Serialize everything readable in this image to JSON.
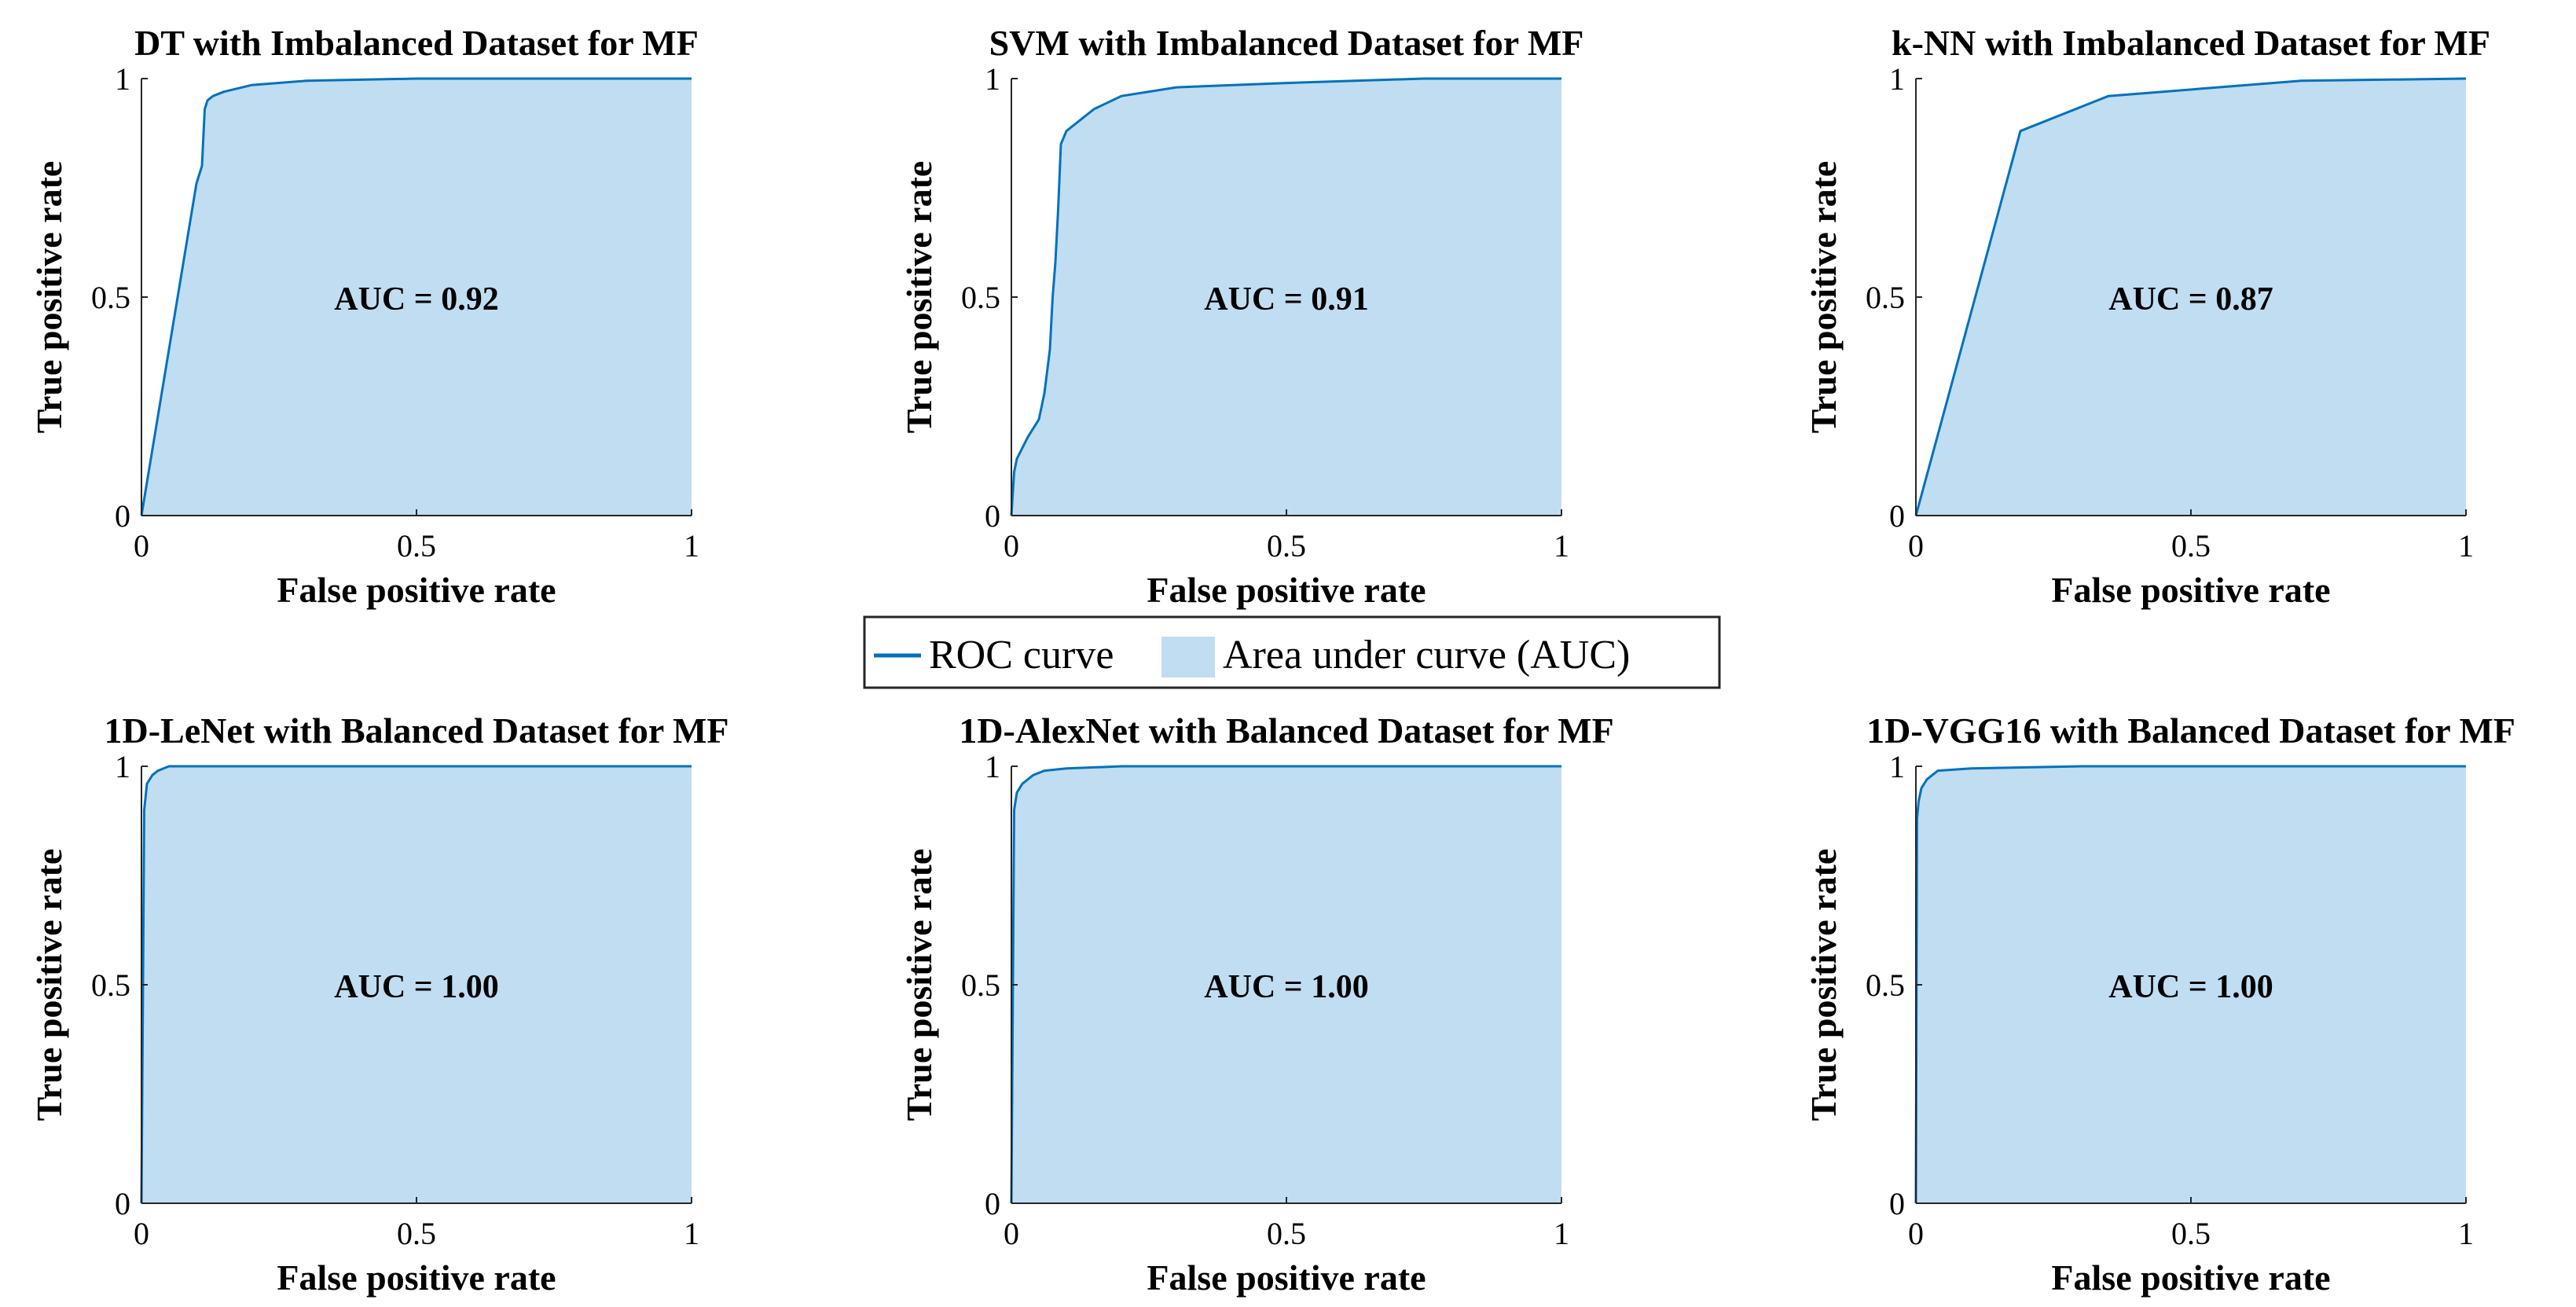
{
  "colors": {
    "line": "#0072BD",
    "fill": "#C1DDF2",
    "axis": "#262626",
    "legend_border": "#262626"
  },
  "legend": {
    "line_label": "ROC curve",
    "area_label": "Area under curve (AUC)"
  },
  "chart_data": [
    {
      "type": "area",
      "title": "DT with Imbalanced Dataset for MF",
      "xlabel": "False positive rate",
      "ylabel": "True positive rate",
      "xlim": [
        0,
        1
      ],
      "ylim": [
        0,
        1
      ],
      "xticks": [
        "0",
        "0.5",
        "1"
      ],
      "yticks": [
        "0",
        "0.5",
        "1"
      ],
      "auc_text": "AUC = 0.92",
      "series": [
        {
          "name": "ROC curve",
          "x": [
            0,
            0.1,
            0.11,
            0.115,
            0.12,
            0.13,
            0.15,
            0.2,
            0.3,
            0.5,
            1
          ],
          "y": [
            0,
            0.76,
            0.8,
            0.93,
            0.95,
            0.96,
            0.97,
            0.985,
            0.995,
            1,
            1
          ]
        }
      ]
    },
    {
      "type": "area",
      "title": "SVM with Imbalanced Dataset for MF",
      "xlabel": "False positive rate",
      "ylabel": "True positive rate",
      "xlim": [
        0,
        1
      ],
      "ylim": [
        0,
        1
      ],
      "xticks": [
        "0",
        "0.5",
        "1"
      ],
      "yticks": [
        "0",
        "0.5",
        "1"
      ],
      "auc_text": "AUC = 0.91",
      "series": [
        {
          "name": "ROC curve",
          "x": [
            0,
            0.005,
            0.01,
            0.03,
            0.05,
            0.06,
            0.07,
            0.075,
            0.08,
            0.085,
            0.09,
            0.1,
            0.12,
            0.15,
            0.2,
            0.3,
            0.5,
            0.75,
            1
          ],
          "y": [
            0,
            0.1,
            0.13,
            0.18,
            0.22,
            0.28,
            0.38,
            0.5,
            0.58,
            0.7,
            0.85,
            0.88,
            0.9,
            0.93,
            0.96,
            0.98,
            0.99,
            1,
            1
          ]
        }
      ]
    },
    {
      "type": "area",
      "title": "k-NN with Imbalanced Dataset for MF",
      "xlabel": "False positive rate",
      "ylabel": "True positive rate",
      "xlim": [
        0,
        1
      ],
      "ylim": [
        0,
        1
      ],
      "xticks": [
        "0",
        "0.5",
        "1"
      ],
      "yticks": [
        "0",
        "0.5",
        "1"
      ],
      "auc_text": "AUC = 0.87",
      "series": [
        {
          "name": "ROC curve",
          "x": [
            0,
            0.19,
            0.35,
            0.7,
            1
          ],
          "y": [
            0,
            0.88,
            0.96,
            0.995,
            1
          ]
        }
      ]
    },
    {
      "type": "area",
      "title": "1D-LeNet with Balanced Dataset for MF",
      "xlabel": "False positive rate",
      "ylabel": "True positive rate",
      "xlim": [
        0,
        1
      ],
      "ylim": [
        0,
        1
      ],
      "xticks": [
        "0",
        "0.5",
        "1"
      ],
      "yticks": [
        "0",
        "0.5",
        "1"
      ],
      "auc_text": "AUC = 1.00",
      "series": [
        {
          "name": "ROC curve",
          "x": [
            0,
            0.005,
            0.01,
            0.02,
            0.03,
            0.05,
            0.1,
            1
          ],
          "y": [
            0,
            0.9,
            0.96,
            0.98,
            0.99,
            1,
            1,
            1
          ]
        }
      ]
    },
    {
      "type": "area",
      "title": "1D-AlexNet with Balanced Dataset for MF",
      "xlabel": "False positive rate",
      "ylabel": "True positive rate",
      "xlim": [
        0,
        1
      ],
      "ylim": [
        0,
        1
      ],
      "xticks": [
        "0",
        "0.5",
        "1"
      ],
      "yticks": [
        "0",
        "0.5",
        "1"
      ],
      "auc_text": "AUC = 1.00",
      "series": [
        {
          "name": "ROC curve",
          "x": [
            0,
            0.005,
            0.01,
            0.02,
            0.04,
            0.06,
            0.1,
            0.2,
            1
          ],
          "y": [
            0,
            0.9,
            0.94,
            0.96,
            0.98,
            0.99,
            0.995,
            1,
            1
          ]
        }
      ]
    },
    {
      "type": "area",
      "title": "1D-VGG16 with Balanced Dataset for MF",
      "xlabel": "False positive rate",
      "ylabel": "True positive rate",
      "xlim": [
        0,
        1
      ],
      "ylim": [
        0,
        1
      ],
      "xticks": [
        "0",
        "0.5",
        "1"
      ],
      "yticks": [
        "0",
        "0.5",
        "1"
      ],
      "auc_text": "AUC = 1.00",
      "series": [
        {
          "name": "ROC curve",
          "x": [
            0,
            0.002,
            0.005,
            0.01,
            0.02,
            0.04,
            0.1,
            0.3,
            1
          ],
          "y": [
            0,
            0.88,
            0.92,
            0.95,
            0.97,
            0.99,
            0.995,
            1,
            1
          ]
        }
      ]
    }
  ]
}
